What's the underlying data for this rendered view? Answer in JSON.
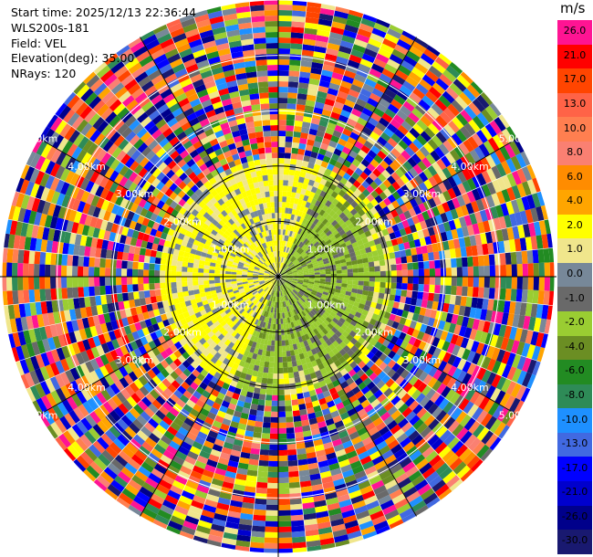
{
  "info": {
    "start_time": "Start time: 2025/12/13 22:36:44",
    "instrument": "WLS200s-181",
    "field": "Field: VEL",
    "elevation": "Elevation(deg): 35.00",
    "nrays": "NRays: 120"
  },
  "colorbar": {
    "unit": "m/s",
    "bins": [
      {
        "label": "26.0",
        "color": "#ff1493"
      },
      {
        "label": "21.0",
        "color": "#ff0000"
      },
      {
        "label": "17.0",
        "color": "#ff4500"
      },
      {
        "label": "13.0",
        "color": "#ff6347"
      },
      {
        "label": "10.0",
        "color": "#ff7f50"
      },
      {
        "label": "8.0",
        "color": "#fa8072"
      },
      {
        "label": "6.0",
        "color": "#ff8c00"
      },
      {
        "label": "4.0",
        "color": "#ffa500"
      },
      {
        "label": "2.0",
        "color": "#ffff00"
      },
      {
        "label": "1.0",
        "color": "#f0e68c"
      },
      {
        "label": "0.0",
        "color": "#778899"
      },
      {
        "label": "-1.0",
        "color": "#696969"
      },
      {
        "label": "-2.0",
        "color": "#9acd32"
      },
      {
        "label": "-4.0",
        "color": "#6b8e23"
      },
      {
        "label": "-6.0",
        "color": "#228b22"
      },
      {
        "label": "-8.0",
        "color": "#2e8b57"
      },
      {
        "label": "-10.0",
        "color": "#1e90ff"
      },
      {
        "label": "-13.0",
        "color": "#4169e1"
      },
      {
        "label": "-17.0",
        "color": "#0000ff"
      },
      {
        "label": "-21.0",
        "color": "#0000cd"
      },
      {
        "label": "-26.0",
        "color": "#00008b"
      },
      {
        "label": "-30.0",
        "color": "#191970"
      }
    ]
  },
  "chart_data": {
    "type": "heatmap",
    "projection": "polar PPI",
    "field": "VEL",
    "units": "m/s",
    "nrays": 120,
    "max_range_km": 5.0,
    "range_ring_labels": [
      "1.00km",
      "2.00km",
      "3.00km",
      "4.00km",
      "5.00km"
    ],
    "range_rings_km": [
      1,
      2,
      3,
      4,
      5
    ],
    "radials_deg": [
      0,
      30,
      60,
      90,
      120,
      150,
      180,
      210,
      240,
      270,
      300,
      330
    ],
    "near_field": {
      "range_km": [
        0,
        2.2
      ],
      "north_west_sector": "2.0 to 4.0",
      "south_east_sector": "-2.0 to -4.0"
    },
    "far_field": "noise, full color range -30.0 to 26.0"
  }
}
